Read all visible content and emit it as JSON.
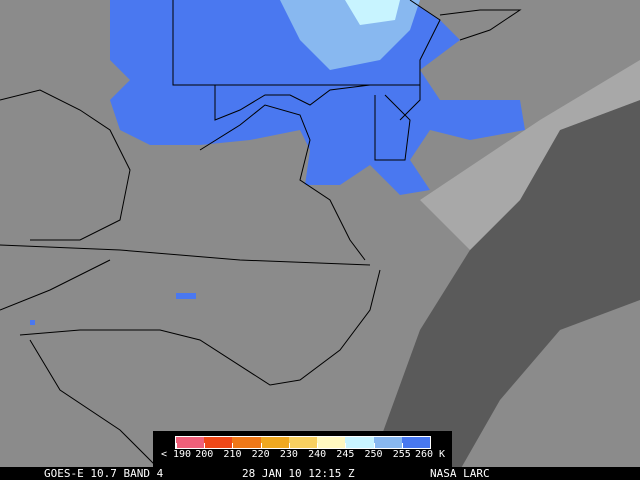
{
  "footer": {
    "satellite": "GOES-E 10.7 BAND 4",
    "datetime": "28 JAN 10 12:15 Z",
    "credit": "NASA LARC"
  },
  "legend": {
    "labels": [
      "< 190",
      "200",
      "210",
      "220",
      "230",
      "240",
      "245",
      "250",
      "255",
      "260 K"
    ],
    "colors": [
      "#f0607a",
      "#f04818",
      "#f07818",
      "#f0a820",
      "#f8d060",
      "#fff8c0",
      "#c8f4ff",
      "#88b8f0",
      "#4878f0"
    ]
  },
  "colors": {
    "land_gray": "#8a8a8a",
    "cold_cloud_blue": "#4a78f0",
    "ocean_dark": "#505050",
    "outline": "#000000"
  }
}
